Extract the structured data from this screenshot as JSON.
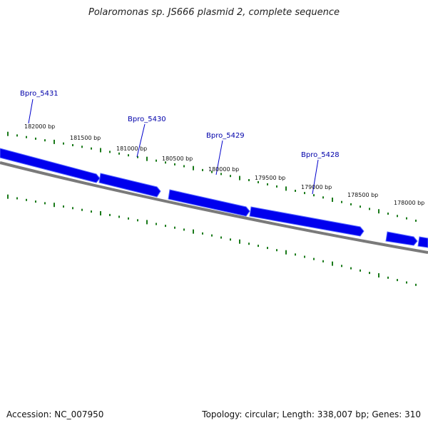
{
  "title": "Polaromonas sp. JS666 plasmid 2, complete sequence",
  "accession_text": "Accession: NC_007950",
  "summary_text": "Topology: circular; Length: 338,007 bp; Genes: 310",
  "colors": {
    "gene": "#0000ee",
    "gene_highlight": "#5566ff",
    "backbone": "#7a7a7a",
    "tick": "#1a7a1a",
    "label": "#0000aa",
    "leader": "#0000cc",
    "position_text": "#111111"
  },
  "gene_labels": [
    "Bpro_5431",
    "Bpro_5430",
    "Bpro_5429",
    "Bpro_5428"
  ],
  "position_labels": [
    "182000 bp",
    "181500 bp",
    "181000 bp",
    "180500 bp",
    "180000 bp",
    "179500 bp",
    "179000 bp",
    "178500 bp",
    "178000 bp"
  ]
}
